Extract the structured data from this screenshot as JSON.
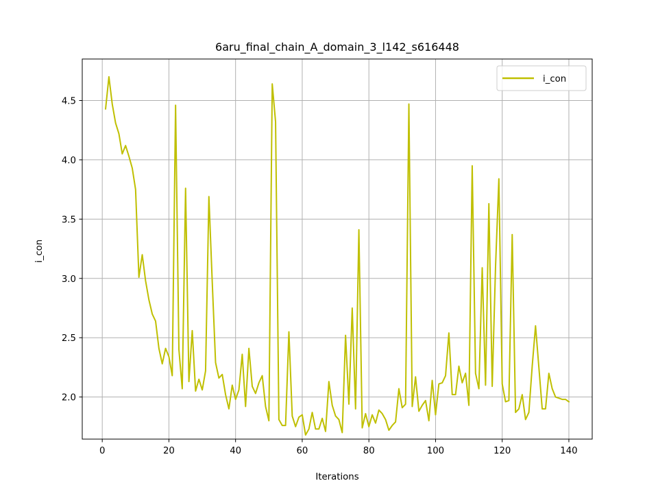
{
  "chart_data": {
    "type": "line",
    "title": "6aru_final_chain_A_domain_3_l142_s616448",
    "xlabel": "Iterations",
    "ylabel": "i_con",
    "xlim": [
      -6,
      147
    ],
    "ylim": [
      1.645,
      4.85
    ],
    "xticks": [
      0,
      20,
      40,
      60,
      80,
      100,
      120,
      140
    ],
    "yticks": [
      2.0,
      2.5,
      3.0,
      3.5,
      4.0,
      4.5
    ],
    "ytick_labels": [
      "2.0",
      "2.5",
      "3.0",
      "3.5",
      "4.0",
      "4.5"
    ],
    "grid": true,
    "legend_position": "top-right",
    "colors": {
      "line": "#bfbf00",
      "grid": "#b0b0b0",
      "axes": "#000000"
    },
    "series": [
      {
        "name": "i_con",
        "x": [
          1,
          2,
          3,
          4,
          5,
          6,
          7,
          8,
          9,
          10,
          11,
          12,
          13,
          14,
          15,
          16,
          17,
          18,
          19,
          20,
          21,
          22,
          23,
          24,
          25,
          26,
          27,
          28,
          29,
          30,
          31,
          32,
          33,
          34,
          35,
          36,
          37,
          38,
          39,
          40,
          41,
          42,
          43,
          44,
          45,
          46,
          47,
          48,
          49,
          50,
          51,
          52,
          53,
          54,
          55,
          56,
          57,
          58,
          59,
          60,
          61,
          62,
          63,
          64,
          65,
          66,
          67,
          68,
          69,
          70,
          71,
          72,
          73,
          74,
          75,
          76,
          77,
          78,
          79,
          80,
          81,
          82,
          83,
          84,
          85,
          86,
          87,
          88,
          89,
          90,
          91,
          92,
          93,
          94,
          95,
          96,
          97,
          98,
          99,
          100,
          101,
          102,
          103,
          104,
          105,
          106,
          107,
          108,
          109,
          110,
          111,
          112,
          113,
          114,
          115,
          116,
          117,
          118,
          119,
          120,
          121,
          122,
          123,
          124,
          125,
          126,
          127,
          128,
          129,
          130,
          131,
          132,
          133,
          134,
          135,
          136,
          137,
          138,
          139,
          140
        ],
        "values": [
          4.43,
          4.7,
          4.47,
          4.31,
          4.22,
          4.05,
          4.12,
          4.03,
          3.93,
          3.75,
          3.01,
          3.2,
          2.98,
          2.82,
          2.7,
          2.64,
          2.41,
          2.28,
          2.41,
          2.34,
          2.18,
          4.46,
          2.4,
          2.07,
          3.76,
          2.13,
          2.56,
          2.05,
          2.15,
          2.06,
          2.22,
          3.69,
          2.97,
          2.29,
          2.16,
          2.19,
          2.02,
          1.9,
          2.1,
          1.98,
          2.06,
          2.36,
          1.92,
          2.41,
          2.09,
          2.03,
          2.12,
          2.18,
          1.92,
          1.8,
          4.64,
          4.32,
          1.81,
          1.76,
          1.76,
          2.55,
          1.84,
          1.75,
          1.83,
          1.85,
          1.68,
          1.73,
          1.87,
          1.73,
          1.73,
          1.82,
          1.71,
          2.13,
          1.93,
          1.84,
          1.81,
          1.7,
          2.52,
          1.94,
          2.75,
          1.9,
          3.41,
          1.74,
          1.86,
          1.75,
          1.85,
          1.78,
          1.89,
          1.86,
          1.81,
          1.72,
          1.76,
          1.79,
          2.07,
          1.91,
          1.94,
          4.47,
          1.92,
          2.17,
          1.88,
          1.93,
          1.97,
          1.8,
          2.14,
          1.85,
          2.11,
          2.12,
          2.18,
          2.54,
          2.02,
          2.02,
          2.26,
          2.12,
          2.2,
          1.93,
          3.95,
          2.2,
          2.07,
          3.09,
          2.1,
          3.63,
          2.09,
          3.1,
          3.84,
          2.11,
          1.96,
          1.97,
          3.37,
          1.87,
          1.9,
          2.02,
          1.81,
          1.87,
          2.26,
          2.6,
          2.25,
          1.9,
          1.9,
          2.2,
          2.07,
          2.0,
          1.99,
          1.98,
          1.98,
          1.96
        ]
      }
    ]
  }
}
